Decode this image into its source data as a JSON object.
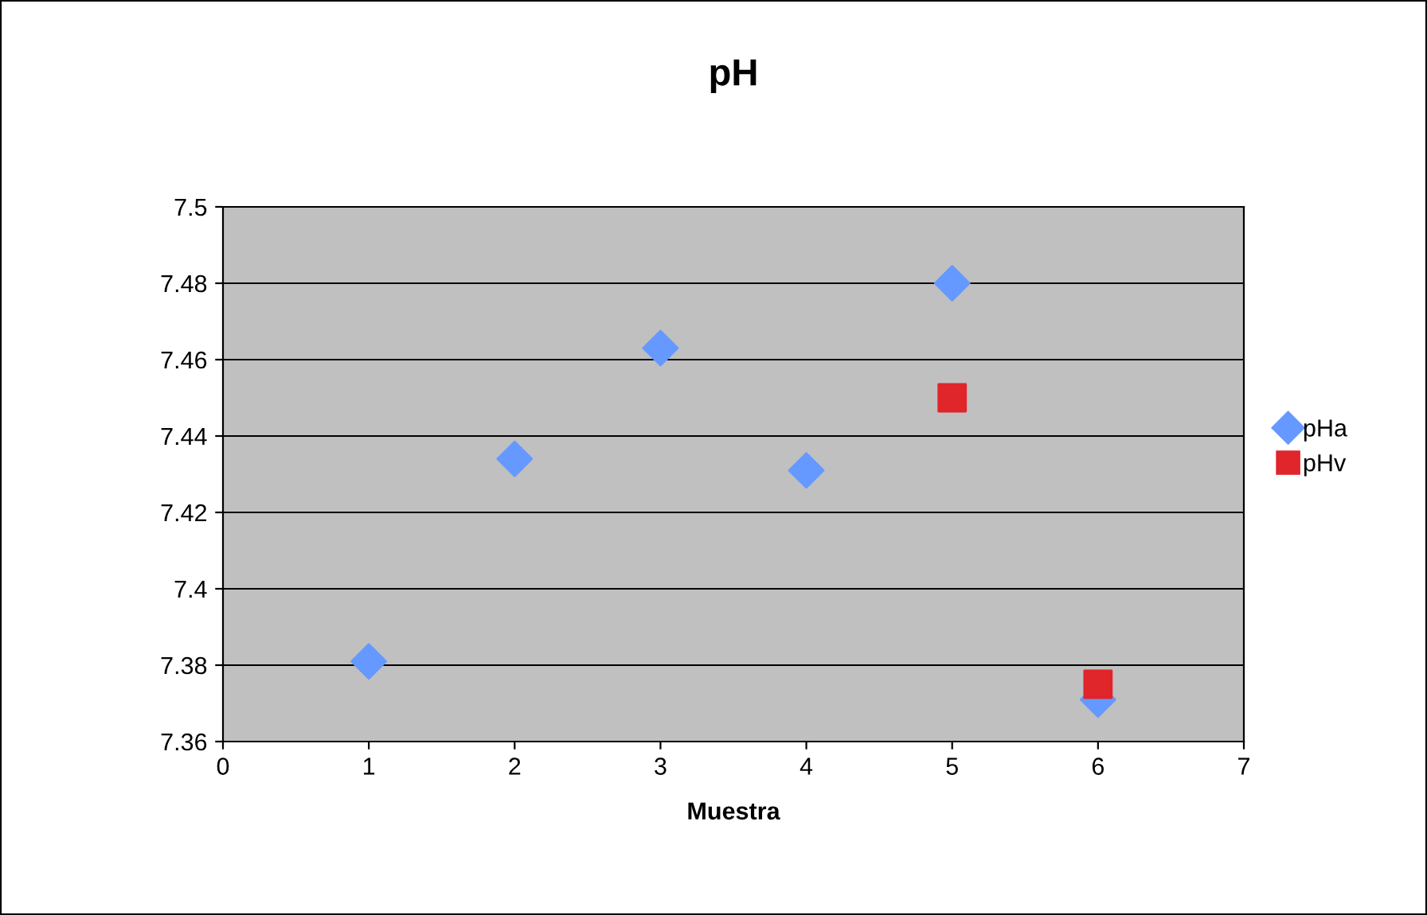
{
  "chart_data": {
    "type": "scatter",
    "title": "pH",
    "xlabel": "Muestra",
    "series": [
      {
        "name": "pHa",
        "color": "#6699ff",
        "marker": "diamond",
        "x": [
          1,
          2,
          3,
          4,
          5,
          6
        ],
        "values": [
          7.381,
          7.434,
          7.463,
          7.431,
          7.48,
          7.371
        ]
      },
      {
        "name": "pHv",
        "color": "#e0252b",
        "marker": "square",
        "x": [
          5,
          6
        ],
        "values": [
          7.45,
          7.375
        ]
      }
    ],
    "xlim": [
      0,
      7
    ],
    "xticks": [
      0,
      1,
      2,
      3,
      4,
      5,
      6,
      7
    ],
    "ylim": [
      7.36,
      7.5
    ],
    "yticks": [
      {
        "value": 7.36,
        "label": "7.36"
      },
      {
        "value": 7.38,
        "label": "7.38"
      },
      {
        "value": 7.4,
        "label": "7.4"
      },
      {
        "value": 7.42,
        "label": "7.42"
      },
      {
        "value": 7.44,
        "label": "7.44"
      },
      {
        "value": 7.46,
        "label": "7.46"
      },
      {
        "value": 7.48,
        "label": "7.48"
      },
      {
        "value": 7.5,
        "label": "7.5"
      }
    ],
    "grid": "y",
    "legend": "right"
  }
}
